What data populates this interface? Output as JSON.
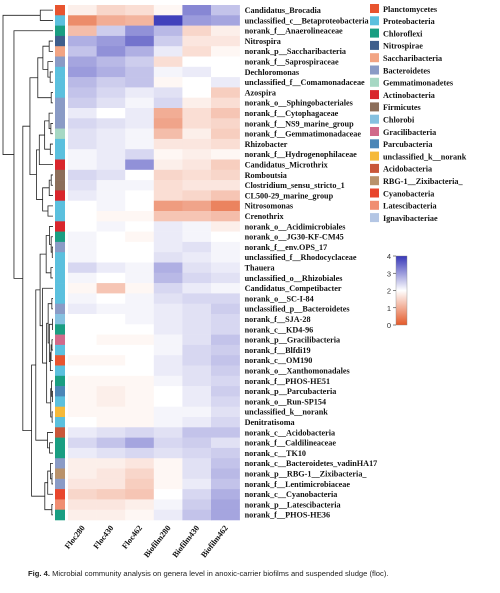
{
  "chart_data": {
    "type": "heatmap",
    "columns": [
      "Floc280",
      "Floc430",
      "Floc462",
      "Biofilm280",
      "Biofilm430",
      "Biofilm462"
    ],
    "rows": [
      {
        "label": "Candidatus_Brocadia",
        "phylum": "Planctomycetes",
        "values": [
          1.8,
          1.5,
          1.6,
          1.9,
          3.2,
          2.6
        ]
      },
      {
        "label": "unclassified_c__Betaproteobacteria",
        "phylum": "Proteobacteria",
        "values": [
          0.6,
          1.0,
          1.1,
          3.9,
          3.0,
          2.9
        ]
      },
      {
        "label": "norank_f__Anaerolineaceae",
        "phylum": "Chloroflexi",
        "values": [
          1.2,
          2.5,
          3.1,
          2.7,
          1.5,
          1.8
        ]
      },
      {
        "label": "Nitrospira",
        "phylum": "Nitrospirae",
        "values": [
          2.8,
          3.0,
          3.4,
          2.5,
          1.7,
          1.7
        ]
      },
      {
        "label": "norank_p__Saccharibacteria",
        "phylum": "Saccharibacteria",
        "values": [
          2.6,
          3.1,
          2.8,
          2.2,
          1.6,
          1.9
        ]
      },
      {
        "label": "norank_f__Saprospiraceae",
        "phylum": "Bacteroidetes",
        "values": [
          2.9,
          2.7,
          2.5,
          1.6,
          2.0,
          2.0
        ]
      },
      {
        "label": "Dechloromonas",
        "phylum": "Proteobacteria",
        "values": [
          3.0,
          2.8,
          2.6,
          2.1,
          2.2,
          2.0
        ]
      },
      {
        "label": "unclassified_f__Comamonadaceae",
        "phylum": "Proteobacteria",
        "values": [
          2.7,
          2.5,
          2.6,
          1.9,
          2.0,
          2.2
        ]
      },
      {
        "label": "Azospira",
        "phylum": "Proteobacteria",
        "values": [
          2.6,
          2.4,
          2.2,
          2.3,
          2.0,
          1.4
        ]
      },
      {
        "label": "norank_o__Sphingobacteriales",
        "phylum": "Bacteroidetes",
        "values": [
          2.5,
          2.3,
          2.1,
          2.4,
          1.8,
          1.6
        ]
      },
      {
        "label": "norank_f__Cytophagaceae",
        "phylum": "Bacteroidetes",
        "values": [
          2.2,
          2.0,
          2.2,
          1.0,
          1.6,
          1.3
        ]
      },
      {
        "label": "norank_f__NS9_marine_group",
        "phylum": "Bacteroidetes",
        "values": [
          2.4,
          2.3,
          2.2,
          0.9,
          1.6,
          1.5
        ]
      },
      {
        "label": "norank_f__Gemmatimonadaceae",
        "phylum": "Gemmatimonadetes",
        "values": [
          2.3,
          2.2,
          2.1,
          1.2,
          1.8,
          1.4
        ]
      },
      {
        "label": "Rhizobacter",
        "phylum": "Proteobacteria",
        "values": [
          2.3,
          2.2,
          2.1,
          1.7,
          1.7,
          1.6
        ]
      },
      {
        "label": "norank_f__Hydrogenophilaceae",
        "phylum": "Proteobacteria",
        "values": [
          2.1,
          2.2,
          2.4,
          1.9,
          1.8,
          1.9
        ]
      },
      {
        "label": "Candidatus_Microthrix",
        "phylum": "Actinobacteria",
        "values": [
          2.1,
          2.2,
          3.1,
          1.8,
          1.7,
          1.4
        ]
      },
      {
        "label": "Romboutsia",
        "phylum": "Firmicutes",
        "values": [
          2.4,
          2.3,
          2.0,
          1.5,
          1.6,
          1.5
        ]
      },
      {
        "label": "Clostridium_sensu_stricto_1",
        "phylum": "Firmicutes",
        "values": [
          2.3,
          2.1,
          2.1,
          1.6,
          1.7,
          1.7
        ]
      },
      {
        "label": "CL500-29_marine_group",
        "phylum": "Actinobacteria",
        "values": [
          2.2,
          2.1,
          2.0,
          1.6,
          1.5,
          1.3
        ]
      },
      {
        "label": "Nitrosomonas",
        "phylum": "Proteobacteria",
        "values": [
          2.0,
          2.1,
          2.0,
          0.8,
          0.9,
          0.5
        ]
      },
      {
        "label": "Crenothrix",
        "phylum": "Proteobacteria",
        "values": [
          2.0,
          1.9,
          1.9,
          1.3,
          1.3,
          1.2
        ]
      },
      {
        "label": "norank_o__Acidimicrobiales",
        "phylum": "Actinobacteria",
        "values": [
          2.0,
          2.1,
          2.0,
          2.2,
          2.1,
          1.8
        ]
      },
      {
        "label": "norank_o__JG30-KF-CM45",
        "phylum": "Chloroflexi",
        "values": [
          2.1,
          2.0,
          1.9,
          2.2,
          2.1,
          2.0
        ]
      },
      {
        "label": "norank_f__env.OPS_17",
        "phylum": "Bacteroidetes",
        "values": [
          2.1,
          2.0,
          2.0,
          2.2,
          2.3,
          2.1
        ]
      },
      {
        "label": "unclassified_f__Rhodocyclaceae",
        "phylum": "Proteobacteria",
        "values": [
          2.1,
          2.0,
          2.0,
          2.3,
          2.2,
          2.1
        ]
      },
      {
        "label": "Thauera",
        "phylum": "Proteobacteria",
        "values": [
          2.4,
          2.2,
          2.1,
          2.8,
          2.3,
          2.2
        ]
      },
      {
        "label": "unclassified_o__Rhizobiales",
        "phylum": "Proteobacteria",
        "values": [
          2.1,
          2.0,
          2.1,
          2.7,
          2.4,
          2.3
        ]
      },
      {
        "label": "Candidatus_Competibacter",
        "phylum": "Proteobacteria",
        "values": [
          1.9,
          1.3,
          1.9,
          2.4,
          2.2,
          2.1
        ]
      },
      {
        "label": "norank_o__SC-I-84",
        "phylum": "Proteobacteria",
        "values": [
          2.1,
          2.0,
          2.1,
          2.3,
          2.4,
          2.4
        ]
      },
      {
        "label": "unclassified_p__Bacteroidetes",
        "phylum": "Bacteroidetes",
        "values": [
          2.2,
          2.1,
          2.1,
          2.2,
          2.3,
          2.5
        ]
      },
      {
        "label": "norank_f__SJA-28",
        "phylum": "Chlorobi",
        "values": [
          2.0,
          2.0,
          2.1,
          2.2,
          2.3,
          2.4
        ]
      },
      {
        "label": "norank_c__KD4-96",
        "phylum": "Chloroflexi",
        "values": [
          2.0,
          2.0,
          2.0,
          2.2,
          2.3,
          2.4
        ]
      },
      {
        "label": "norank_p__Gracilibacteria",
        "phylum": "Gracilibacteria",
        "values": [
          2.0,
          1.9,
          1.9,
          2.1,
          2.3,
          2.6
        ]
      },
      {
        "label": "norank_f__Blfdi19",
        "phylum": "Proteobacteria",
        "values": [
          2.0,
          2.0,
          2.0,
          2.1,
          2.4,
          2.5
        ]
      },
      {
        "label": "norank_c__OM190",
        "phylum": "Planctomycetes",
        "values": [
          1.9,
          1.9,
          2.0,
          2.2,
          2.4,
          2.6
        ]
      },
      {
        "label": "norank_o__Xanthomonadales",
        "phylum": "Proteobacteria",
        "values": [
          2.0,
          2.0,
          2.0,
          2.2,
          2.3,
          2.5
        ]
      },
      {
        "label": "norank_f__PHOS-HE51",
        "phylum": "Chloroflexi",
        "values": [
          1.9,
          1.9,
          1.9,
          2.1,
          2.3,
          2.4
        ]
      },
      {
        "label": "norank_p__Parcubacteria",
        "phylum": "Parcubacteria",
        "values": [
          1.9,
          1.8,
          1.9,
          2.0,
          2.2,
          2.5
        ]
      },
      {
        "label": "norank_o__Run-SP154",
        "phylum": "Proteobacteria",
        "values": [
          1.9,
          1.8,
          1.9,
          2.0,
          2.2,
          2.4
        ]
      },
      {
        "label": "unclassified_k__norank",
        "phylum": "unclassified_k__norank",
        "values": [
          1.9,
          1.9,
          1.9,
          2.1,
          2.1,
          2.3
        ]
      },
      {
        "label": "Denitratisoma",
        "phylum": "Proteobacteria",
        "values": [
          2.0,
          1.9,
          1.9,
          2.1,
          2.2,
          2.4
        ]
      },
      {
        "label": "norank_c__Acidobacteria",
        "phylum": "Acidobacteria",
        "values": [
          2.2,
          2.3,
          2.4,
          2.3,
          2.6,
          2.6
        ]
      },
      {
        "label": "norank_f__Caldilineaceae",
        "phylum": "Chloroflexi",
        "values": [
          2.4,
          2.6,
          2.9,
          2.4,
          2.5,
          2.3
        ]
      },
      {
        "label": "norank_c__TK10",
        "phylum": "Chloroflexi",
        "values": [
          2.2,
          2.3,
          2.4,
          2.3,
          2.4,
          2.5
        ]
      },
      {
        "label": "norank_c__Bacteroidetes_vadinHA17",
        "phylum": "Bacteroidetes",
        "values": [
          1.8,
          1.8,
          1.7,
          1.9,
          2.3,
          2.6
        ]
      },
      {
        "label": "norank_p__RBG-1__Zixibacteria_",
        "phylum": "RBG-1__Zixibacteria_",
        "values": [
          1.8,
          1.7,
          1.5,
          1.9,
          2.3,
          2.7
        ]
      },
      {
        "label": "norank_f__Lentimicrobiaceae",
        "phylum": "Bacteroidetes",
        "values": [
          1.7,
          1.7,
          1.4,
          1.9,
          2.2,
          2.6
        ]
      },
      {
        "label": "norank_c__Cyanobacteria",
        "phylum": "Cyanobacteria",
        "values": [
          1.5,
          1.4,
          1.3,
          2.0,
          2.4,
          2.8
        ]
      },
      {
        "label": "norank_p__Latescibacteria",
        "phylum": "Latescibacteria",
        "values": [
          1.7,
          1.7,
          1.8,
          2.1,
          2.5,
          2.9
        ]
      },
      {
        "label": "norank_f__PHOS-HE36",
        "phylum": "Chloroflexi",
        "values": [
          1.8,
          1.8,
          1.9,
          2.2,
          2.6,
          2.9
        ]
      }
    ],
    "legend": [
      {
        "label": "Planctomycetes",
        "color": "#e8542f"
      },
      {
        "label": "Proteobacteria",
        "color": "#5bc0de"
      },
      {
        "label": "Chloroflexi",
        "color": "#1a9e82"
      },
      {
        "label": "Nitrospirae",
        "color": "#3f5e8c"
      },
      {
        "label": "Saccharibacteria",
        "color": "#f2a483"
      },
      {
        "label": "Bacteroidetes",
        "color": "#8a9bc6"
      },
      {
        "label": "Gemmatimonadetes",
        "color": "#a6d8c4"
      },
      {
        "label": "Actinobacteria",
        "color": "#d9262c"
      },
      {
        "label": "Firmicutes",
        "color": "#8c6e5a"
      },
      {
        "label": "Chlorobi",
        "color": "#86c1e0"
      },
      {
        "label": "Gracilibacteria",
        "color": "#d1698a"
      },
      {
        "label": "Parcubacteria",
        "color": "#4b86b7"
      },
      {
        "label": "unclassified_k__norank",
        "color": "#f5b93a"
      },
      {
        "label": "Acidobacteria",
        "color": "#c9573a"
      },
      {
        "label": "RBG-1__Zixibacteria_",
        "color": "#b9926b"
      },
      {
        "label": "Cyanobacteria",
        "color": "#e8462d"
      },
      {
        "label": "Latescibacteria",
        "color": "#f08e72"
      },
      {
        "label": "Ignavibacteriae",
        "color": "#b4c6e4"
      }
    ],
    "colorbar": {
      "min": 0,
      "max": 4,
      "ticks": [
        0,
        1,
        2,
        3,
        4
      ],
      "low_color": "#e45a2a",
      "mid_color": "#ffffff",
      "high_color": "#3737b8"
    }
  },
  "caption": {
    "label": "Fig. 4.",
    "text": "Microbial community analysis on genera level in anoxic-carrier biofilms and suspended sludge (floc)."
  }
}
